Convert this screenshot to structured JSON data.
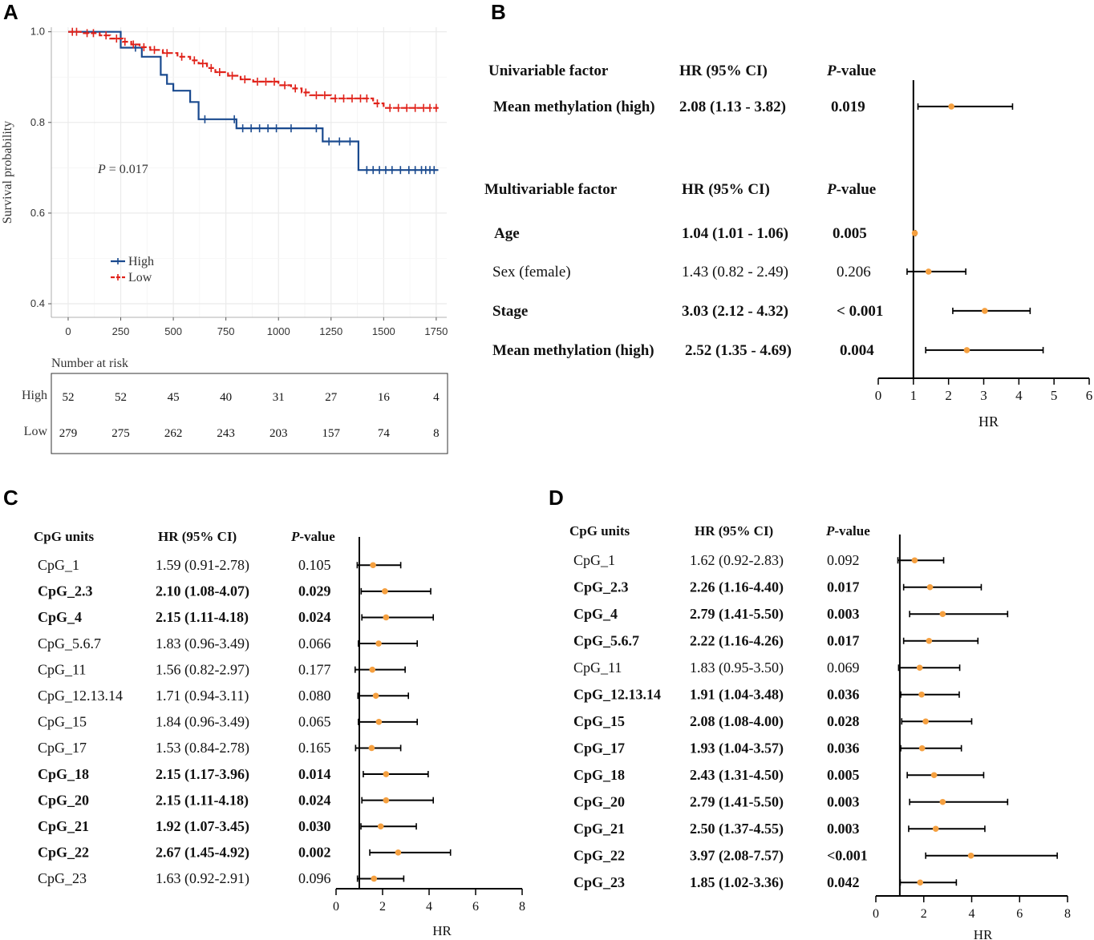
{
  "panels": {
    "A": "A",
    "B": "B",
    "C": "C",
    "D": "D"
  },
  "colors": {
    "high": "#1a4a8f",
    "low": "#e0221a",
    "point": "#f5a040",
    "grid": "#ebebeb"
  },
  "chart_data": [
    {
      "id": "A",
      "type": "line",
      "title": "",
      "xlabel": "",
      "ylabel": "Survival probability",
      "xlim": [
        -80,
        1800
      ],
      "ylim": [
        0.37,
        1.01
      ],
      "xticks": [
        "0",
        "250",
        "500",
        "750",
        "1000",
        "1250",
        "1500",
        "1750"
      ],
      "yticks": [
        "0.4",
        "0.6",
        "0.8",
        "1.0"
      ],
      "annotation": {
        "italic": "P",
        "text": " = 0.017"
      },
      "legend": [
        "High",
        "Low"
      ],
      "series": [
        {
          "name": "High",
          "steps": [
            [
              0,
              1.0
            ],
            [
              250,
              1.0
            ],
            [
              250,
              0.965
            ],
            [
              350,
              0.965
            ],
            [
              350,
              0.945
            ],
            [
              440,
              0.945
            ],
            [
              440,
              0.905
            ],
            [
              470,
              0.905
            ],
            [
              470,
              0.885
            ],
            [
              500,
              0.885
            ],
            [
              500,
              0.87
            ],
            [
              580,
              0.87
            ],
            [
              580,
              0.845
            ],
            [
              620,
              0.845
            ],
            [
              620,
              0.807
            ],
            [
              800,
              0.807
            ],
            [
              800,
              0.787
            ],
            [
              1210,
              0.787
            ],
            [
              1210,
              0.758
            ],
            [
              1380,
              0.758
            ],
            [
              1380,
              0.695
            ],
            [
              1760,
              0.695
            ]
          ],
          "censor": [
            320,
            650,
            790,
            830,
            870,
            910,
            950,
            990,
            1060,
            1180,
            1240,
            1290,
            1340,
            1420,
            1450,
            1480,
            1510,
            1540,
            1580,
            1620,
            1650,
            1680,
            1700,
            1720,
            1740
          ]
        },
        {
          "name": "Low",
          "steps": [
            [
              0,
              1.0
            ],
            [
              60,
              1.0
            ],
            [
              60,
              0.997
            ],
            [
              150,
              0.997
            ],
            [
              150,
              0.992
            ],
            [
              200,
              0.992
            ],
            [
              200,
              0.985
            ],
            [
              260,
              0.985
            ],
            [
              260,
              0.978
            ],
            [
              300,
              0.978
            ],
            [
              300,
              0.972
            ],
            [
              340,
              0.972
            ],
            [
              340,
              0.966
            ],
            [
              390,
              0.966
            ],
            [
              390,
              0.96
            ],
            [
              450,
              0.96
            ],
            [
              450,
              0.953
            ],
            [
              520,
              0.953
            ],
            [
              520,
              0.945
            ],
            [
              580,
              0.945
            ],
            [
              580,
              0.937
            ],
            [
              620,
              0.937
            ],
            [
              620,
              0.93
            ],
            [
              660,
              0.93
            ],
            [
              660,
              0.92
            ],
            [
              700,
              0.92
            ],
            [
              700,
              0.911
            ],
            [
              760,
              0.911
            ],
            [
              760,
              0.903
            ],
            [
              820,
              0.903
            ],
            [
              820,
              0.895
            ],
            [
              880,
              0.895
            ],
            [
              880,
              0.89
            ],
            [
              1000,
              0.89
            ],
            [
              1000,
              0.882
            ],
            [
              1060,
              0.882
            ],
            [
              1060,
              0.875
            ],
            [
              1110,
              0.875
            ],
            [
              1110,
              0.866
            ],
            [
              1150,
              0.866
            ],
            [
              1150,
              0.86
            ],
            [
              1250,
              0.86
            ],
            [
              1250,
              0.853
            ],
            [
              1450,
              0.853
            ],
            [
              1450,
              0.842
            ],
            [
              1500,
              0.842
            ],
            [
              1500,
              0.832
            ],
            [
              1760,
              0.832
            ]
          ],
          "censor": [
            20,
            40,
            90,
            120,
            180,
            230,
            270,
            310,
            360,
            410,
            470,
            540,
            600,
            640,
            680,
            720,
            780,
            840,
            900,
            940,
            980,
            1030,
            1080,
            1130,
            1180,
            1220,
            1270,
            1310,
            1350,
            1390,
            1420,
            1470,
            1530,
            1570,
            1610,
            1650,
            1690,
            1720,
            1750
          ]
        }
      ],
      "risk_table": {
        "title": "Number at risk",
        "rows": [
          {
            "label": "High",
            "values": [
              "52",
              "52",
              "45",
              "40",
              "31",
              "27",
              "16",
              "4"
            ]
          },
          {
            "label": "Low",
            "values": [
              "279",
              "275",
              "262",
              "243",
              "203",
              "157",
              "74",
              "8"
            ]
          }
        ]
      }
    },
    {
      "id": "B",
      "type": "scatter",
      "subtype": "forest",
      "xlabel": "HR",
      "xlim": [
        0,
        6
      ],
      "xticks": [
        "0",
        "1",
        "2",
        "3",
        "4",
        "5",
        "6"
      ],
      "ref_line": 1,
      "sections": [
        {
          "headers": [
            "Univariable factor",
            "HR (95% CI)",
            "P-value"
          ],
          "rows": [
            {
              "factor": "Mean methylation (high)",
              "ci_text": "2.08 (1.13 - 3.82)",
              "p": "0.019",
              "hr": 2.08,
              "lo": 1.13,
              "hi": 3.82,
              "bold": true
            }
          ]
        },
        {
          "headers": [
            "Multivariable factor",
            "HR (95% CI)",
            "P-value"
          ],
          "rows": [
            {
              "factor": "Age",
              "ci_text": "1.04 (1.01 - 1.06)",
              "p": "0.005",
              "hr": 1.04,
              "lo": 1.01,
              "hi": 1.06,
              "bold": true
            },
            {
              "factor": "Sex (female)",
              "ci_text": "1.43 (0.82 - 2.49)",
              "p": "0.206",
              "hr": 1.43,
              "lo": 0.82,
              "hi": 2.49,
              "bold": false
            },
            {
              "factor": "Stage",
              "ci_text": "3.03 (2.12 - 4.32)",
              "p": "< 0.001",
              "hr": 3.03,
              "lo": 2.12,
              "hi": 4.32,
              "bold": true
            },
            {
              "factor": "Mean methylation (high)",
              "ci_text": "2.52 (1.35 - 4.69)",
              "p": "0.004",
              "hr": 2.52,
              "lo": 1.35,
              "hi": 4.69,
              "bold": true
            }
          ]
        }
      ]
    },
    {
      "id": "C",
      "type": "scatter",
      "subtype": "forest",
      "xlabel": "HR",
      "xlim": [
        0,
        8
      ],
      "xticks": [
        "0",
        "2",
        "4",
        "6",
        "8"
      ],
      "ref_line": 1,
      "headers": [
        "CpG units",
        "HR (95% CI)",
        "P-value"
      ],
      "rows": [
        {
          "factor": "CpG_1",
          "ci_text": "1.59 (0.91-2.78)",
          "p": "0.105",
          "hr": 1.59,
          "lo": 0.91,
          "hi": 2.78,
          "bold": false
        },
        {
          "factor": "CpG_2.3",
          "ci_text": "2.10 (1.08-4.07)",
          "p": "0.029",
          "hr": 2.1,
          "lo": 1.08,
          "hi": 4.07,
          "bold": true
        },
        {
          "factor": "CpG_4",
          "ci_text": "2.15 (1.11-4.18)",
          "p": "0.024",
          "hr": 2.15,
          "lo": 1.11,
          "hi": 4.18,
          "bold": true
        },
        {
          "factor": "CpG_5.6.7",
          "ci_text": "1.83 (0.96-3.49)",
          "p": "0.066",
          "hr": 1.83,
          "lo": 0.96,
          "hi": 3.49,
          "bold": false
        },
        {
          "factor": "CpG_11",
          "ci_text": "1.56 (0.82-2.97)",
          "p": "0.177",
          "hr": 1.56,
          "lo": 0.82,
          "hi": 2.97,
          "bold": false
        },
        {
          "factor": "CpG_12.13.14",
          "ci_text": "1.71 (0.94-3.11)",
          "p": "0.080",
          "hr": 1.71,
          "lo": 0.94,
          "hi": 3.11,
          "bold": false
        },
        {
          "factor": "CpG_15",
          "ci_text": "1.84 (0.96-3.49)",
          "p": "0.065",
          "hr": 1.84,
          "lo": 0.96,
          "hi": 3.49,
          "bold": false
        },
        {
          "factor": "CpG_17",
          "ci_text": "1.53 (0.84-2.78)",
          "p": "0.165",
          "hr": 1.53,
          "lo": 0.84,
          "hi": 2.78,
          "bold": false
        },
        {
          "factor": "CpG_18",
          "ci_text": "2.15 (1.17-3.96)",
          "p": "0.014",
          "hr": 2.15,
          "lo": 1.17,
          "hi": 3.96,
          "bold": true
        },
        {
          "factor": "CpG_20",
          "ci_text": "2.15 (1.11-4.18)",
          "p": "0.024",
          "hr": 2.15,
          "lo": 1.11,
          "hi": 4.18,
          "bold": true
        },
        {
          "factor": "CpG_21",
          "ci_text": "1.92 (1.07-3.45)",
          "p": "0.030",
          "hr": 1.92,
          "lo": 1.07,
          "hi": 3.45,
          "bold": true
        },
        {
          "factor": "CpG_22",
          "ci_text": "2.67 (1.45-4.92)",
          "p": "0.002",
          "hr": 2.67,
          "lo": 1.45,
          "hi": 4.92,
          "bold": true
        },
        {
          "factor": "CpG_23",
          "ci_text": "1.63 (0.92-2.91)",
          "p": "0.096",
          "hr": 1.63,
          "lo": 0.92,
          "hi": 2.91,
          "bold": false
        }
      ]
    },
    {
      "id": "D",
      "type": "scatter",
      "subtype": "forest",
      "xlabel": "HR",
      "xlim": [
        0,
        8
      ],
      "xticks": [
        "0",
        "2",
        "4",
        "6",
        "8"
      ],
      "ref_line": 1,
      "headers": [
        "CpG units",
        "HR (95% CI)",
        "P-value"
      ],
      "rows": [
        {
          "factor": "CpG_1",
          "ci_text": "1.62 (0.92-2.83)",
          "p": "0.092",
          "hr": 1.62,
          "lo": 0.92,
          "hi": 2.83,
          "bold": false
        },
        {
          "factor": "CpG_2.3",
          "ci_text": "2.26 (1.16-4.40)",
          "p": "0.017",
          "hr": 2.26,
          "lo": 1.16,
          "hi": 4.4,
          "bold": true
        },
        {
          "factor": "CpG_4",
          "ci_text": "2.79 (1.41-5.50)",
          "p": "0.003",
          "hr": 2.79,
          "lo": 1.41,
          "hi": 5.5,
          "bold": true
        },
        {
          "factor": "CpG_5.6.7",
          "ci_text": "2.22 (1.16-4.26)",
          "p": "0.017",
          "hr": 2.22,
          "lo": 1.16,
          "hi": 4.26,
          "bold": true
        },
        {
          "factor": "CpG_11",
          "ci_text": "1.83 (0.95-3.50)",
          "p": "0.069",
          "hr": 1.83,
          "lo": 0.95,
          "hi": 3.5,
          "bold": false
        },
        {
          "factor": "CpG_12.13.14",
          "ci_text": "1.91 (1.04-3.48)",
          "p": "0.036",
          "hr": 1.91,
          "lo": 1.04,
          "hi": 3.48,
          "bold": true
        },
        {
          "factor": "CpG_15",
          "ci_text": "2.08 (1.08-4.00)",
          "p": "0.028",
          "hr": 2.08,
          "lo": 1.08,
          "hi": 4.0,
          "bold": true
        },
        {
          "factor": "CpG_17",
          "ci_text": "1.93 (1.04-3.57)",
          "p": "0.036",
          "hr": 1.93,
          "lo": 1.04,
          "hi": 3.57,
          "bold": true
        },
        {
          "factor": "CpG_18",
          "ci_text": "2.43 (1.31-4.50)",
          "p": "0.005",
          "hr": 2.43,
          "lo": 1.31,
          "hi": 4.5,
          "bold": true
        },
        {
          "factor": "CpG_20",
          "ci_text": "2.79 (1.41-5.50)",
          "p": "0.003",
          "hr": 2.79,
          "lo": 1.41,
          "hi": 5.5,
          "bold": true
        },
        {
          "factor": "CpG_21",
          "ci_text": "2.50 (1.37-4.55)",
          "p": "0.003",
          "hr": 2.5,
          "lo": 1.37,
          "hi": 4.55,
          "bold": true
        },
        {
          "factor": "CpG_22",
          "ci_text": "3.97 (2.08-7.57)",
          "p": "<0.001",
          "hr": 3.97,
          "lo": 2.08,
          "hi": 7.57,
          "bold": true
        },
        {
          "factor": "CpG_23",
          "ci_text": "1.85 (1.02-3.36)",
          "p": "0.042",
          "hr": 1.85,
          "lo": 1.02,
          "hi": 3.36,
          "bold": true
        }
      ]
    }
  ]
}
